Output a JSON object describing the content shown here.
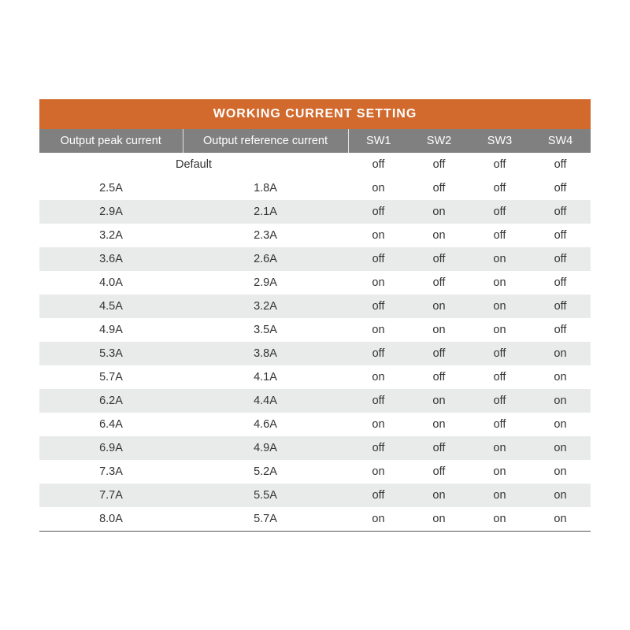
{
  "title": "WORKING CURRENT SETTING",
  "colors": {
    "title_bg": "#d26a2e",
    "title_text": "#ffffff",
    "header_bg": "#808080",
    "header_text": "#ffffff",
    "row_stripe": "#e9ebeb",
    "row_plain": "#ffffff",
    "text": "#333333",
    "bottom_rule": "#555555"
  },
  "fontsize": {
    "title": 16,
    "header": 14.5,
    "body": 14.5
  },
  "columns": [
    {
      "key": "peak",
      "label": "Output peak current"
    },
    {
      "key": "ref",
      "label": "Output reference current"
    },
    {
      "key": "sw1",
      "label": "SW1"
    },
    {
      "key": "sw2",
      "label": "SW2"
    },
    {
      "key": "sw3",
      "label": "SW3"
    },
    {
      "key": "sw4",
      "label": "SW4"
    }
  ],
  "default_row": {
    "label": "Default",
    "sw1": "off",
    "sw2": "off",
    "sw3": "off",
    "sw4": "off"
  },
  "rows": [
    {
      "peak": "2.5A",
      "ref": "1.8A",
      "sw1": "on",
      "sw2": "off",
      "sw3": "off",
      "sw4": "off"
    },
    {
      "peak": "2.9A",
      "ref": "2.1A",
      "sw1": "off",
      "sw2": "on",
      "sw3": "off",
      "sw4": "off"
    },
    {
      "peak": "3.2A",
      "ref": "2.3A",
      "sw1": "on",
      "sw2": "on",
      "sw3": "off",
      "sw4": "off"
    },
    {
      "peak": "3.6A",
      "ref": "2.6A",
      "sw1": "off",
      "sw2": "off",
      "sw3": "on",
      "sw4": "off"
    },
    {
      "peak": "4.0A",
      "ref": "2.9A",
      "sw1": "on",
      "sw2": "off",
      "sw3": "on",
      "sw4": "off"
    },
    {
      "peak": "4.5A",
      "ref": "3.2A",
      "sw1": "off",
      "sw2": "on",
      "sw3": "on",
      "sw4": "off"
    },
    {
      "peak": "4.9A",
      "ref": "3.5A",
      "sw1": "on",
      "sw2": "on",
      "sw3": "on",
      "sw4": "off"
    },
    {
      "peak": "5.3A",
      "ref": "3.8A",
      "sw1": "off",
      "sw2": "off",
      "sw3": "off",
      "sw4": "on"
    },
    {
      "peak": "5.7A",
      "ref": "4.1A",
      "sw1": "on",
      "sw2": "off",
      "sw3": "off",
      "sw4": "on"
    },
    {
      "peak": "6.2A",
      "ref": "4.4A",
      "sw1": "off",
      "sw2": "on",
      "sw3": "off",
      "sw4": "on"
    },
    {
      "peak": "6.4A",
      "ref": "4.6A",
      "sw1": "on",
      "sw2": "on",
      "sw3": "off",
      "sw4": "on"
    },
    {
      "peak": "6.9A",
      "ref": "4.9A",
      "sw1": "off",
      "sw2": "off",
      "sw3": "on",
      "sw4": "on"
    },
    {
      "peak": "7.3A",
      "ref": "5.2A",
      "sw1": "on",
      "sw2": "off",
      "sw3": "on",
      "sw4": "on"
    },
    {
      "peak": "7.7A",
      "ref": "5.5A",
      "sw1": "off",
      "sw2": "on",
      "sw3": "on",
      "sw4": "on"
    },
    {
      "peak": "8.0A",
      "ref": "5.7A",
      "sw1": "on",
      "sw2": "on",
      "sw3": "on",
      "sw4": "on"
    }
  ]
}
